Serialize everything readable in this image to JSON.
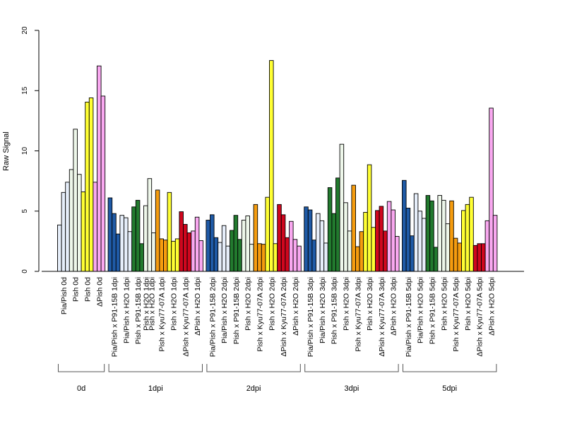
{
  "chart_data": {
    "type": "bar",
    "ylabel": "Raw Signal",
    "ylim": [
      0,
      20
    ],
    "yticks": [
      0,
      5,
      10,
      15,
      20
    ],
    "grid": false,
    "border_color": "#000000",
    "groups": [
      {
        "label": "0d",
        "categories": [
          "Pia/Pish 0d",
          "Pish 0d",
          "Pish 0d",
          "ΔPish 0d"
        ],
        "bars": [
          {
            "cat": 0,
            "color": "#e6eefa",
            "value": 3.85
          },
          {
            "cat": 0,
            "color": "#e6eefa",
            "value": 6.55
          },
          {
            "cat": 0,
            "color": "#e6eefa",
            "value": 7.4
          },
          {
            "cat": 1,
            "color": "#eef7ea",
            "value": 8.45
          },
          {
            "cat": 1,
            "color": "#eef7ea",
            "value": 11.8
          },
          {
            "cat": 1,
            "color": "#eef7ea",
            "value": 8.05
          },
          {
            "cat": 2,
            "color": "#ffff33",
            "value": 6.6
          },
          {
            "cat": 2,
            "color": "#ffff33",
            "value": 14.05
          },
          {
            "cat": 2,
            "color": "#ffff33",
            "value": 14.4
          },
          {
            "cat": 3,
            "color": "#f9a8f0",
            "value": 7.4
          },
          {
            "cat": 3,
            "color": "#f9a8f0",
            "value": 17.05
          },
          {
            "cat": 3,
            "color": "#f9a8f0",
            "value": 14.55
          }
        ]
      },
      {
        "label": "1dpi",
        "categories": [
          "Pia/Pish x P91-15B 1dpi",
          "Pia/Pish x H2O 1dpi",
          "Pish x P91-15B 1dpi",
          "Pish x H2O 1dpi",
          "Pish x H2O 1dpi",
          "Pish x Kyu77-07A 1dpi",
          "Pish x H2O 1dpi",
          "ΔPish x Kyu77-07A 1dpi",
          "ΔPish x H2O 1dpi"
        ],
        "bars": [
          {
            "cat": 0,
            "color": "#1f5aa6",
            "value": 6.1
          },
          {
            "cat": 0,
            "color": "#1f5aa6",
            "value": 4.8
          },
          {
            "cat": 0,
            "color": "#1f5aa6",
            "value": 3.1
          },
          {
            "cat": 1,
            "color": "#e6eefa",
            "value": 4.65
          },
          {
            "cat": 1,
            "color": "#e6eefa",
            "value": 4.45
          },
          {
            "cat": 1,
            "color": "#e6eefa",
            "value": 3.3
          },
          {
            "cat": 2,
            "color": "#227a2e",
            "value": 5.35
          },
          {
            "cat": 2,
            "color": "#227a2e",
            "value": 5.9
          },
          {
            "cat": 2,
            "color": "#227a2e",
            "value": 2.3
          },
          {
            "cat": 3,
            "color": "#eef7ea",
            "value": 5.45
          },
          {
            "cat": 4,
            "color": "#eef7ea",
            "value": 7.7
          },
          {
            "cat": 4,
            "color": "#eef7ea",
            "value": 3.2
          },
          {
            "cat": 5,
            "color": "#f59c0f",
            "value": 6.75
          },
          {
            "cat": 5,
            "color": "#f59c0f",
            "value": 2.7
          },
          {
            "cat": 5,
            "color": "#f59c0f",
            "value": 2.6
          },
          {
            "cat": 6,
            "color": "#ffff33",
            "value": 6.55
          },
          {
            "cat": 6,
            "color": "#ffff33",
            "value": 2.5
          },
          {
            "cat": 6,
            "color": "#ffff33",
            "value": 2.7
          },
          {
            "cat": 7,
            "color": "#d0071e",
            "value": 4.95
          },
          {
            "cat": 7,
            "color": "#d0071e",
            "value": 3.9
          },
          {
            "cat": 7,
            "color": "#d0071e",
            "value": 3.2
          },
          {
            "cat": 8,
            "color": "#f9a8f0",
            "value": 3.35
          },
          {
            "cat": 8,
            "color": "#f9a8f0",
            "value": 4.5
          },
          {
            "cat": 8,
            "color": "#f9a8f0",
            "value": 2.55
          }
        ]
      },
      {
        "label": "2dpi",
        "categories": [
          "Pia/Pish x P91-15B 2dpi",
          "Pia/Pish x H2O 2dpi",
          "Pish x P91-15B 2dpi",
          "Pish x H2O 2dpi",
          "Pish x Kyu77-07A 2dpi",
          "Pish x H2O 2dpi",
          "ΔPish x Kyu77-07A 2dpi",
          "ΔPish x H2O 2dpi"
        ],
        "bars": [
          {
            "cat": 0,
            "color": "#1f5aa6",
            "value": 4.25
          },
          {
            "cat": 0,
            "color": "#1f5aa6",
            "value": 4.7
          },
          {
            "cat": 0,
            "color": "#1f5aa6",
            "value": 2.8
          },
          {
            "cat": 1,
            "color": "#e6eefa",
            "value": 2.4
          },
          {
            "cat": 1,
            "color": "#e6eefa",
            "value": 3.8
          },
          {
            "cat": 1,
            "color": "#e6eefa",
            "value": 2.1
          },
          {
            "cat": 2,
            "color": "#227a2e",
            "value": 3.4
          },
          {
            "cat": 2,
            "color": "#227a2e",
            "value": 4.65
          },
          {
            "cat": 2,
            "color": "#227a2e",
            "value": 2.65
          },
          {
            "cat": 3,
            "color": "#eef7ea",
            "value": 4.25
          },
          {
            "cat": 3,
            "color": "#eef7ea",
            "value": 4.6
          },
          {
            "cat": 3,
            "color": "#eef7ea",
            "value": 2.25
          },
          {
            "cat": 4,
            "color": "#f59c0f",
            "value": 5.55
          },
          {
            "cat": 4,
            "color": "#f59c0f",
            "value": 2.3
          },
          {
            "cat": 4,
            "color": "#f59c0f",
            "value": 2.25
          },
          {
            "cat": 5,
            "color": "#ffff33",
            "value": 6.15
          },
          {
            "cat": 5,
            "color": "#ffff33",
            "value": 17.5
          },
          {
            "cat": 5,
            "color": "#ffff33",
            "value": 2.3
          },
          {
            "cat": 6,
            "color": "#d0071e",
            "value": 5.55
          },
          {
            "cat": 6,
            "color": "#d0071e",
            "value": 4.7
          },
          {
            "cat": 6,
            "color": "#d0071e",
            "value": 2.8
          },
          {
            "cat": 7,
            "color": "#f9a8f0",
            "value": 4.15
          },
          {
            "cat": 7,
            "color": "#f9a8f0",
            "value": 2.65
          },
          {
            "cat": 7,
            "color": "#f9a8f0",
            "value": 2.1
          }
        ]
      },
      {
        "label": "3dpi",
        "categories": [
          "Pia/Pish x P91-15B 3dpi",
          "Pia/Pish x H2O 3dpi",
          "Pish x P91-15B 3dpi",
          "Pish x H2O 3dpi",
          "Pish x Kyu77-07A 3dpi",
          "Pish x H2O 3dpi",
          "ΔPish x Kyu77-07A 3dpi",
          "ΔPish x H2O 3dpi"
        ],
        "bars": [
          {
            "cat": 0,
            "color": "#1f5aa6",
            "value": 5.35
          },
          {
            "cat": 0,
            "color": "#1f5aa6",
            "value": 5.1
          },
          {
            "cat": 0,
            "color": "#1f5aa6",
            "value": 2.6
          },
          {
            "cat": 1,
            "color": "#e6eefa",
            "value": 4.8
          },
          {
            "cat": 1,
            "color": "#e6eefa",
            "value": 4.2
          },
          {
            "cat": 1,
            "color": "#e6eefa",
            "value": 2.35
          },
          {
            "cat": 2,
            "color": "#227a2e",
            "value": 6.95
          },
          {
            "cat": 2,
            "color": "#227a2e",
            "value": 4.8
          },
          {
            "cat": 2,
            "color": "#227a2e",
            "value": 7.75
          },
          {
            "cat": 3,
            "color": "#eef7ea",
            "value": 10.55
          },
          {
            "cat": 3,
            "color": "#eef7ea",
            "value": 5.7
          },
          {
            "cat": 3,
            "color": "#eef7ea",
            "value": 3.35
          },
          {
            "cat": 4,
            "color": "#f59c0f",
            "value": 7.15
          },
          {
            "cat": 4,
            "color": "#f59c0f",
            "value": 2.05
          },
          {
            "cat": 4,
            "color": "#f59c0f",
            "value": 3.3
          },
          {
            "cat": 5,
            "color": "#ffff33",
            "value": 4.9
          },
          {
            "cat": 5,
            "color": "#ffff33",
            "value": 8.85
          },
          {
            "cat": 5,
            "color": "#ffff33",
            "value": 3.65
          },
          {
            "cat": 6,
            "color": "#d0071e",
            "value": 5.05
          },
          {
            "cat": 6,
            "color": "#d0071e",
            "value": 5.4
          },
          {
            "cat": 6,
            "color": "#d0071e",
            "value": 3.35
          },
          {
            "cat": 7,
            "color": "#f9a8f0",
            "value": 5.8
          },
          {
            "cat": 7,
            "color": "#f9a8f0",
            "value": 5.1
          },
          {
            "cat": 7,
            "color": "#f9a8f0",
            "value": 2.9
          }
        ]
      },
      {
        "label": "5dpi",
        "categories": [
          "Pia/Pish x P91-15B 5dpi",
          "Pia/Pish x H2O 5dpi",
          "Pish x P91-15B 5dpi",
          "Pish x H2O 5dpi",
          "Pish x Kyu77-07A 5dpi",
          "Pish x H2O 5dpi",
          "ΔPish x Kyu77-07A 5dpi",
          "ΔPish x H2O 5dpi"
        ],
        "bars": [
          {
            "cat": 0,
            "color": "#1f5aa6",
            "value": 7.55
          },
          {
            "cat": 0,
            "color": "#1f5aa6",
            "value": 5.25
          },
          {
            "cat": 0,
            "color": "#1f5aa6",
            "value": 2.95
          },
          {
            "cat": 1,
            "color": "#e6eefa",
            "value": 6.45
          },
          {
            "cat": 1,
            "color": "#e6eefa",
            "value": 5.0
          },
          {
            "cat": 1,
            "color": "#e6eefa",
            "value": 4.4
          },
          {
            "cat": 2,
            "color": "#227a2e",
            "value": 6.3
          },
          {
            "cat": 2,
            "color": "#227a2e",
            "value": 5.85
          },
          {
            "cat": 2,
            "color": "#227a2e",
            "value": 2.0
          },
          {
            "cat": 3,
            "color": "#eef7ea",
            "value": 6.3
          },
          {
            "cat": 3,
            "color": "#eef7ea",
            "value": 5.9
          },
          {
            "cat": 3,
            "color": "#eef7ea",
            "value": 3.95
          },
          {
            "cat": 4,
            "color": "#f59c0f",
            "value": 5.85
          },
          {
            "cat": 4,
            "color": "#f59c0f",
            "value": 2.75
          },
          {
            "cat": 4,
            "color": "#f59c0f",
            "value": 2.35
          },
          {
            "cat": 5,
            "color": "#ffff33",
            "value": 5.05
          },
          {
            "cat": 5,
            "color": "#ffff33",
            "value": 5.55
          },
          {
            "cat": 5,
            "color": "#ffff33",
            "value": 6.15
          },
          {
            "cat": 6,
            "color": "#d0071e",
            "value": 2.15
          },
          {
            "cat": 6,
            "color": "#d0071e",
            "value": 2.3
          },
          {
            "cat": 6,
            "color": "#d0071e",
            "value": 2.3
          },
          {
            "cat": 7,
            "color": "#f9a8f0",
            "value": 4.2
          },
          {
            "cat": 7,
            "color": "#f9a8f0",
            "value": 13.55
          },
          {
            "cat": 7,
            "color": "#f9a8f0",
            "value": 4.65
          }
        ]
      }
    ]
  }
}
